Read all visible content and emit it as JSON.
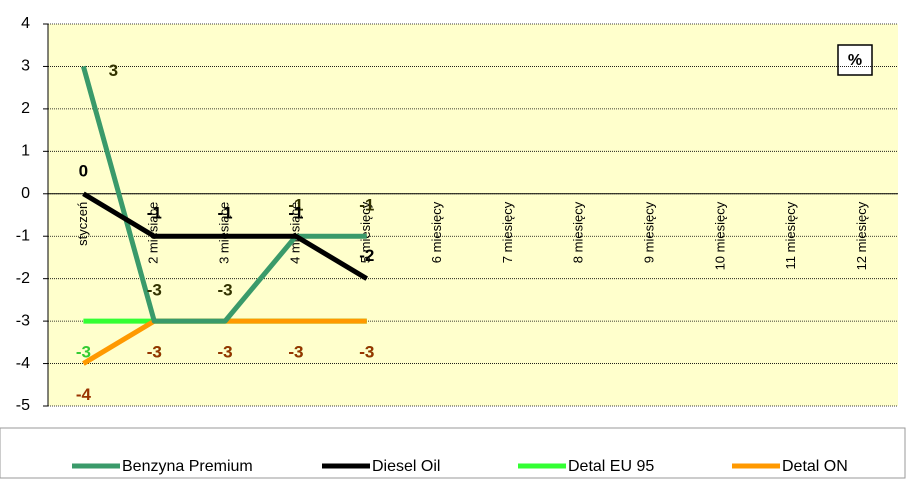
{
  "chart_data": {
    "type": "line",
    "categories": [
      "styczeń",
      "2 miesiące",
      "3 miesiące",
      "4 miesiące",
      "5 miesięcy",
      "6 miesięcy",
      "7 miesięcy",
      "8 miesięcy",
      "9 miesięcy",
      "10 miesięcy",
      "11 miesięcy",
      "12 miesięcy"
    ],
    "series": [
      {
        "name": "Benzyna Premium",
        "color": "#3a9a6a",
        "label_color": "#333300",
        "values": [
          3,
          -3,
          -3,
          -1,
          -1,
          null,
          null,
          null,
          null,
          null,
          null,
          null
        ]
      },
      {
        "name": "Diesel Oil",
        "color": "#000000",
        "label_color": "#000000",
        "values": [
          0,
          -1,
          -1,
          -1,
          -2,
          null,
          null,
          null,
          null,
          null,
          null,
          null
        ]
      },
      {
        "name": "Detal EU 95",
        "color": "#33ff33",
        "label_color": "#33cc33",
        "values": [
          -3,
          -3,
          -3,
          -3,
          -3,
          null,
          null,
          null,
          null,
          null,
          null,
          null
        ]
      },
      {
        "name": "Detal ON",
        "color": "#ff9900",
        "label_color": "#993300",
        "values": [
          -4,
          -3,
          -3,
          -3,
          -3,
          null,
          null,
          null,
          null,
          null,
          null,
          null
        ]
      }
    ],
    "unit_note": "%",
    "ylim": [
      -5,
      4
    ],
    "yticks": [
      -5,
      -4,
      -3,
      -2,
      -1,
      0,
      1,
      2,
      3,
      4
    ],
    "grid": true,
    "legend": "bottom"
  }
}
